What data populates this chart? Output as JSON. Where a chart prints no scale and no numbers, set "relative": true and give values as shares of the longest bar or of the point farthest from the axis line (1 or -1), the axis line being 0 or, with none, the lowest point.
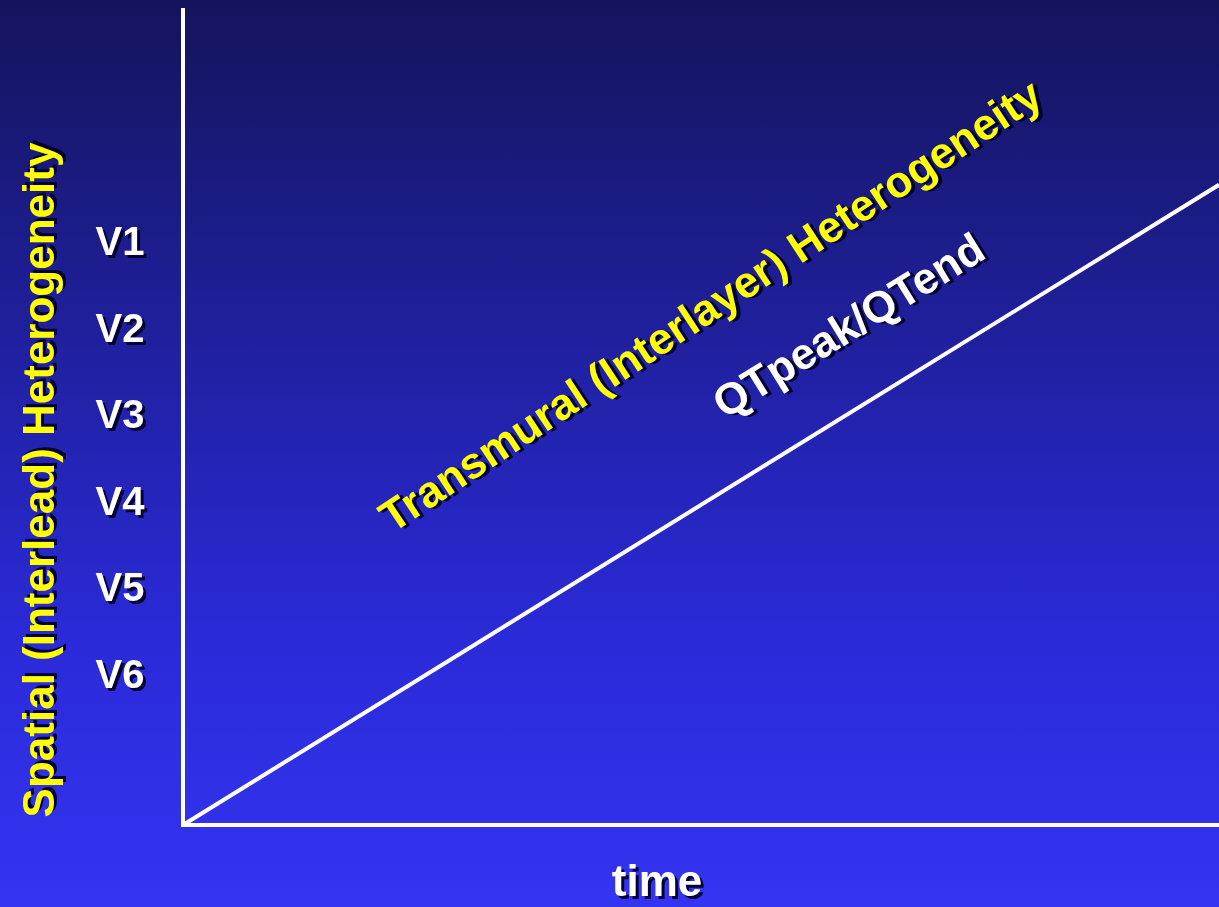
{
  "chart_data": {
    "type": "line",
    "relative": true,
    "xlabel": "time",
    "ylabel": "Spatial (Interlead) Heterogeneity",
    "categories": [
      null,
      null
    ],
    "series": [
      {
        "name": "QTpeak/QTend",
        "color": "#ffffff",
        "values": [
          0,
          1
        ]
      }
    ],
    "annotations": [
      "V1",
      "V2",
      "V3",
      "V4",
      "V5",
      "V6",
      "Transmural (Interlayer) Heterogeneity"
    ],
    "ref_lines": [
      {
        "axis": "y",
        "value": 0,
        "color": "#ffffff"
      }
    ],
    "marker": "none",
    "legend": false
  }
}
